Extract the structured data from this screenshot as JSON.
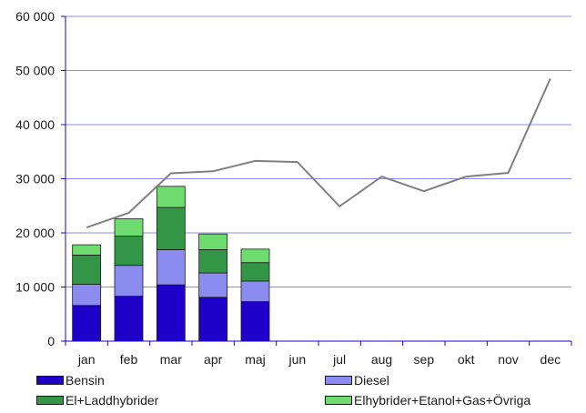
{
  "chart_data": {
    "type": "bar",
    "stacked": true,
    "categories": [
      "jan",
      "feb",
      "mar",
      "apr",
      "maj",
      "jun",
      "jul",
      "aug",
      "sep",
      "okt",
      "nov",
      "dec"
    ],
    "series": [
      {
        "name": "Bensin",
        "color": "#1e00c8",
        "values": [
          6600,
          8300,
          10400,
          8100,
          7300,
          null,
          null,
          null,
          null,
          null,
          null,
          null
        ]
      },
      {
        "name": "Diesel",
        "color": "#8c8cf0",
        "values": [
          3900,
          5700,
          6500,
          4500,
          3800,
          null,
          null,
          null,
          null,
          null,
          null,
          null
        ]
      },
      {
        "name": "El+Laddhybrider",
        "color": "#329646",
        "values": [
          5400,
          5400,
          7800,
          4300,
          3400,
          null,
          null,
          null,
          null,
          null,
          null,
          null
        ]
      },
      {
        "name": "Elhybrider+Etanol+Gas+Övriga",
        "color": "#6edc6e",
        "values": [
          1900,
          3200,
          3900,
          2900,
          2500,
          null,
          null,
          null,
          null,
          null,
          null,
          null
        ]
      }
    ],
    "line": {
      "color": "#808080",
      "values": [
        21000,
        23700,
        31000,
        31400,
        33300,
        33100,
        24900,
        30400,
        27700,
        30400,
        31100,
        48500
      ]
    },
    "yticks": [
      "0",
      "10 000",
      "20 000",
      "30 000",
      "40 000",
      "50 000",
      "60 000"
    ],
    "ylim": [
      0,
      60000
    ],
    "grid": true,
    "legend_position": "bottom",
    "axis_color": "#1e00c8",
    "grid_color": "#8c8cf0"
  }
}
